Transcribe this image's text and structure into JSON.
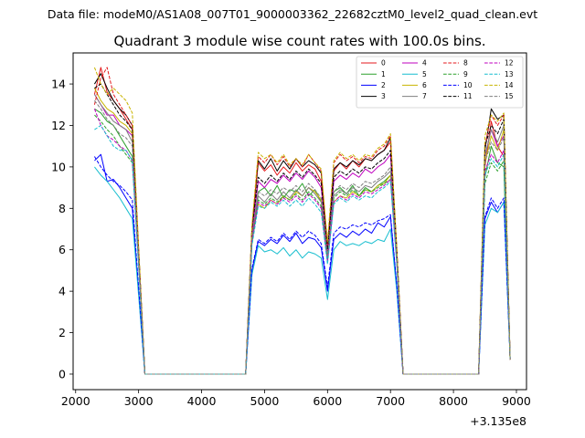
{
  "suptitle": "Data file: modeM0/AS1A08_007T01_9000003362_22682cztM0_level2_quad_clean.evt",
  "chart_data": {
    "type": "line",
    "title": "Quadrant 3 module wise count rates with 100.0s bins.",
    "xlabel": "",
    "ylabel": "",
    "x_offset_label": "+3.135e8",
    "xlim": [
      1960,
      9160
    ],
    "ylim": [
      -0.75,
      15.5
    ],
    "x_ticks": [
      2000,
      3000,
      4000,
      5000,
      6000,
      7000,
      8000,
      9000
    ],
    "y_ticks": [
      0,
      2,
      4,
      6,
      8,
      10,
      12,
      14
    ],
    "legend_position": "top-right",
    "x": [
      2300,
      2400,
      2500,
      2600,
      2700,
      2800,
      2900,
      3000,
      3100,
      3200,
      3300,
      3400,
      3500,
      3600,
      3700,
      3800,
      3900,
      4000,
      4100,
      4200,
      4300,
      4400,
      4500,
      4600,
      4700,
      4800,
      4900,
      5000,
      5100,
      5200,
      5300,
      5400,
      5500,
      5600,
      5700,
      5800,
      5900,
      6000,
      6100,
      6200,
      6300,
      6400,
      6500,
      6600,
      6700,
      6800,
      6900,
      7000,
      7100,
      7200,
      7300,
      7400,
      7500,
      7600,
      7700,
      7800,
      7900,
      8000,
      8100,
      8200,
      8300,
      8400,
      8500,
      8600,
      8700,
      8800,
      8900
    ],
    "series": [
      {
        "name": "0",
        "color": "#e41a1c",
        "dash": "solid",
        "values": [
          13.5,
          14.8,
          13.6,
          13.2,
          12.8,
          12.3,
          11.8,
          6.0,
          0.0,
          0.0,
          0.0,
          0.0,
          0.0,
          0.0,
          0.0,
          0.0,
          0.0,
          0.0,
          0.0,
          0.0,
          0.0,
          0.0,
          0.0,
          0.0,
          0.0,
          7.0,
          10.2,
          9.8,
          10.1,
          9.6,
          10.0,
          9.7,
          10.2,
          9.8,
          10.1,
          9.9,
          9.3,
          6.2,
          9.8,
          10.2,
          9.9,
          10.3,
          10.0,
          10.4,
          10.3,
          10.6,
          10.8,
          11.2,
          6.0,
          0.0,
          0.0,
          0.0,
          0.0,
          0.0,
          0.0,
          0.0,
          0.0,
          0.0,
          0.0,
          0.0,
          0.0,
          0.0,
          10.0,
          12.2,
          11.0,
          10.5,
          0.7
        ]
      },
      {
        "name": "1",
        "color": "#2ca02c",
        "dash": "solid",
        "values": [
          12.8,
          12.6,
          12.2,
          12.0,
          11.5,
          11.0,
          10.5,
          5.5,
          0.0,
          0.0,
          0.0,
          0.0,
          0.0,
          0.0,
          0.0,
          0.0,
          0.0,
          0.0,
          0.0,
          0.0,
          0.0,
          0.0,
          0.0,
          0.0,
          0.0,
          6.5,
          8.8,
          9.0,
          8.6,
          9.1,
          8.5,
          8.9,
          8.8,
          9.2,
          8.6,
          8.9,
          8.3,
          5.6,
          8.8,
          9.0,
          8.7,
          9.1,
          8.6,
          9.0,
          8.8,
          9.1,
          9.3,
          9.6,
          5.5,
          0.0,
          0.0,
          0.0,
          0.0,
          0.0,
          0.0,
          0.0,
          0.0,
          0.0,
          0.0,
          0.0,
          0.0,
          0.0,
          9.5,
          11.0,
          10.2,
          10.0,
          0.7
        ]
      },
      {
        "name": "2",
        "color": "#0000ff",
        "dash": "solid",
        "values": [
          10.3,
          10.6,
          9.3,
          9.4,
          9.0,
          8.5,
          8.0,
          4.0,
          0.0,
          0.0,
          0.0,
          0.0,
          0.0,
          0.0,
          0.0,
          0.0,
          0.0,
          0.0,
          0.0,
          0.0,
          0.0,
          0.0,
          0.0,
          0.0,
          0.0,
          5.0,
          6.4,
          6.2,
          6.5,
          6.3,
          6.7,
          6.4,
          6.8,
          6.3,
          6.6,
          6.5,
          6.1,
          4.0,
          6.5,
          6.8,
          6.6,
          6.9,
          6.7,
          7.0,
          6.8,
          7.3,
          7.1,
          7.6,
          4.2,
          0.0,
          0.0,
          0.0,
          0.0,
          0.0,
          0.0,
          0.0,
          0.0,
          0.0,
          0.0,
          0.0,
          0.0,
          0.0,
          7.5,
          8.3,
          7.8,
          8.3,
          0.8
        ]
      },
      {
        "name": "3",
        "color": "#000000",
        "dash": "solid",
        "values": [
          14.0,
          14.5,
          13.8,
          13.2,
          12.8,
          12.5,
          12.0,
          6.0,
          0.0,
          0.0,
          0.0,
          0.0,
          0.0,
          0.0,
          0.0,
          0.0,
          0.0,
          0.0,
          0.0,
          0.0,
          0.0,
          0.0,
          0.0,
          0.0,
          0.0,
          7.0,
          10.3,
          9.9,
          10.4,
          9.8,
          10.3,
          9.9,
          10.4,
          10.0,
          10.3,
          10.1,
          9.7,
          6.0,
          9.9,
          10.2,
          10.0,
          10.3,
          10.1,
          10.4,
          10.3,
          10.6,
          10.8,
          11.4,
          6.0,
          0.0,
          0.0,
          0.0,
          0.0,
          0.0,
          0.0,
          0.0,
          0.0,
          0.0,
          0.0,
          0.0,
          0.0,
          0.0,
          10.8,
          12.8,
          12.3,
          12.5,
          0.7
        ]
      },
      {
        "name": "4",
        "color": "#bf00bf",
        "dash": "solid",
        "values": [
          13.5,
          13.0,
          12.5,
          12.5,
          12.0,
          11.8,
          11.5,
          5.8,
          0.0,
          0.0,
          0.0,
          0.0,
          0.0,
          0.0,
          0.0,
          0.0,
          0.0,
          0.0,
          0.0,
          0.0,
          0.0,
          0.0,
          0.0,
          0.0,
          0.0,
          6.8,
          9.3,
          9.0,
          9.4,
          9.2,
          9.6,
          9.3,
          9.7,
          9.4,
          9.8,
          9.5,
          9.0,
          5.9,
          9.3,
          9.6,
          9.4,
          9.7,
          9.5,
          9.9,
          9.7,
          10.0,
          10.2,
          10.6,
          5.8,
          0.0,
          0.0,
          0.0,
          0.0,
          0.0,
          0.0,
          0.0,
          0.0,
          0.0,
          0.0,
          0.0,
          0.0,
          0.0,
          10.5,
          11.8,
          11.0,
          11.5,
          0.7
        ]
      },
      {
        "name": "5",
        "color": "#17becf",
        "dash": "solid",
        "values": [
          10.0,
          9.6,
          9.3,
          8.9,
          8.5,
          8.0,
          7.5,
          3.8,
          0.0,
          0.0,
          0.0,
          0.0,
          0.0,
          0.0,
          0.0,
          0.0,
          0.0,
          0.0,
          0.0,
          0.0,
          0.0,
          0.0,
          0.0,
          0.0,
          0.0,
          4.8,
          6.2,
          5.9,
          6.0,
          5.8,
          6.1,
          5.7,
          6.0,
          5.6,
          5.9,
          5.8,
          5.6,
          3.6,
          6.0,
          6.4,
          6.2,
          6.3,
          6.2,
          6.4,
          6.3,
          6.5,
          6.4,
          7.0,
          4.0,
          0.0,
          0.0,
          0.0,
          0.0,
          0.0,
          0.0,
          0.0,
          0.0,
          0.0,
          0.0,
          0.0,
          0.0,
          0.0,
          7.2,
          8.0,
          7.8,
          8.3,
          0.8
        ]
      },
      {
        "name": "6",
        "color": "#c8b400",
        "dash": "solid",
        "values": [
          13.8,
          13.2,
          12.8,
          12.6,
          12.2,
          12.0,
          11.6,
          5.8,
          0.0,
          0.0,
          0.0,
          0.0,
          0.0,
          0.0,
          0.0,
          0.0,
          0.0,
          0.0,
          0.0,
          0.0,
          0.0,
          0.0,
          0.0,
          0.0,
          0.0,
          6.5,
          8.2,
          8.0,
          8.4,
          8.2,
          8.6,
          8.4,
          8.8,
          8.6,
          9.0,
          8.8,
          8.4,
          5.5,
          8.3,
          8.6,
          8.5,
          8.8,
          8.6,
          8.9,
          8.8,
          9.1,
          9.2,
          9.6,
          5.5,
          0.0,
          0.0,
          0.0,
          0.0,
          0.0,
          0.0,
          0.0,
          0.0,
          0.0,
          0.0,
          0.0,
          0.0,
          0.0,
          10.2,
          11.5,
          10.8,
          11.8,
          0.7
        ]
      },
      {
        "name": "7",
        "color": "#7f7f7f",
        "dash": "solid",
        "values": [
          13.5,
          13.0,
          12.6,
          12.2,
          12.0,
          11.8,
          11.2,
          5.6,
          0.0,
          0.0,
          0.0,
          0.0,
          0.0,
          0.0,
          0.0,
          0.0,
          0.0,
          0.0,
          0.0,
          0.0,
          0.0,
          0.0,
          0.0,
          0.0,
          0.0,
          6.5,
          8.6,
          8.3,
          8.7,
          8.4,
          8.8,
          8.5,
          8.9,
          8.6,
          9.0,
          8.7,
          8.3,
          5.6,
          8.6,
          8.9,
          8.7,
          9.0,
          8.8,
          9.1,
          9.0,
          9.3,
          9.5,
          9.8,
          5.6,
          0.0,
          0.0,
          0.0,
          0.0,
          0.0,
          0.0,
          0.0,
          0.0,
          0.0,
          0.0,
          0.0,
          0.0,
          0.0,
          10.5,
          11.8,
          11.2,
          12.0,
          0.7
        ]
      },
      {
        "name": "8",
        "color": "#e41a1c",
        "dash": "dashed",
        "values": [
          13.0,
          14.3,
          14.8,
          13.5,
          13.0,
          12.5,
          12.0,
          6.0,
          0.0,
          0.0,
          0.0,
          0.0,
          0.0,
          0.0,
          0.0,
          0.0,
          0.0,
          0.0,
          0.0,
          0.0,
          0.0,
          0.0,
          0.0,
          0.0,
          0.0,
          7.0,
          10.5,
          10.2,
          10.6,
          10.1,
          10.5,
          10.0,
          10.4,
          10.0,
          10.6,
          10.2,
          9.8,
          6.2,
          10.2,
          10.6,
          10.3,
          10.5,
          10.2,
          10.5,
          10.4,
          10.8,
          11.0,
          11.5,
          6.0,
          0.0,
          0.0,
          0.0,
          0.0,
          0.0,
          0.0,
          0.0,
          0.0,
          0.0,
          0.0,
          0.0,
          0.0,
          0.0,
          11.0,
          12.5,
          12.0,
          12.5,
          0.7
        ]
      },
      {
        "name": "9",
        "color": "#2ca02c",
        "dash": "dashed",
        "values": [
          12.5,
          12.2,
          11.8,
          11.5,
          11.0,
          10.6,
          10.2,
          5.3,
          0.0,
          0.0,
          0.0,
          0.0,
          0.0,
          0.0,
          0.0,
          0.0,
          0.0,
          0.0,
          0.0,
          0.0,
          0.0,
          0.0,
          0.0,
          0.0,
          0.0,
          6.3,
          8.4,
          8.2,
          8.5,
          8.3,
          8.6,
          8.4,
          8.7,
          8.4,
          8.8,
          8.5,
          8.1,
          5.5,
          8.5,
          8.8,
          8.6,
          8.9,
          8.6,
          8.9,
          8.8,
          9.0,
          9.2,
          9.4,
          5.4,
          0.0,
          0.0,
          0.0,
          0.0,
          0.0,
          0.0,
          0.0,
          0.0,
          0.0,
          0.0,
          0.0,
          0.0,
          0.0,
          9.2,
          10.2,
          9.8,
          10.3,
          0.7
        ]
      },
      {
        "name": "10",
        "color": "#0000ff",
        "dash": "dashed",
        "values": [
          10.5,
          10.0,
          9.6,
          9.3,
          9.1,
          8.8,
          8.4,
          4.2,
          0.0,
          0.0,
          0.0,
          0.0,
          0.0,
          0.0,
          0.0,
          0.0,
          0.0,
          0.0,
          0.0,
          0.0,
          0.0,
          0.0,
          0.0,
          0.0,
          0.0,
          5.1,
          6.5,
          6.3,
          6.6,
          6.4,
          6.8,
          6.5,
          6.9,
          6.6,
          6.9,
          6.7,
          6.3,
          4.2,
          6.8,
          7.1,
          7.0,
          7.2,
          7.1,
          7.3,
          7.2,
          7.4,
          7.5,
          7.7,
          4.3,
          0.0,
          0.0,
          0.0,
          0.0,
          0.0,
          0.0,
          0.0,
          0.0,
          0.0,
          0.0,
          0.0,
          0.0,
          0.0,
          7.6,
          8.5,
          8.0,
          8.5,
          0.8
        ]
      },
      {
        "name": "11",
        "color": "#000000",
        "dash": "dashed",
        "values": [
          13.8,
          14.0,
          13.5,
          13.0,
          12.5,
          12.2,
          11.8,
          6.0,
          0.0,
          0.0,
          0.0,
          0.0,
          0.0,
          0.0,
          0.0,
          0.0,
          0.0,
          0.0,
          0.0,
          0.0,
          0.0,
          0.0,
          0.0,
          0.0,
          0.0,
          7.0,
          9.5,
          9.2,
          9.6,
          9.3,
          9.7,
          9.4,
          9.8,
          9.5,
          9.9,
          9.6,
          9.2,
          5.9,
          9.5,
          9.8,
          9.6,
          9.9,
          9.7,
          10.0,
          9.9,
          10.2,
          10.4,
          10.8,
          5.9,
          0.0,
          0.0,
          0.0,
          0.0,
          0.0,
          0.0,
          0.0,
          0.0,
          0.0,
          0.0,
          0.0,
          0.0,
          0.0,
          11.0,
          12.0,
          11.6,
          12.3,
          0.7
        ]
      },
      {
        "name": "12",
        "color": "#bf00bf",
        "dash": "dashed",
        "values": [
          12.8,
          12.0,
          11.5,
          11.3,
          11.0,
          10.8,
          10.3,
          5.4,
          0.0,
          0.0,
          0.0,
          0.0,
          0.0,
          0.0,
          0.0,
          0.0,
          0.0,
          0.0,
          0.0,
          0.0,
          0.0,
          0.0,
          0.0,
          0.0,
          0.0,
          6.4,
          8.3,
          8.1,
          8.4,
          8.2,
          8.5,
          8.3,
          8.6,
          8.3,
          8.7,
          8.4,
          8.0,
          5.4,
          8.3,
          8.6,
          8.4,
          8.7,
          8.5,
          8.8,
          8.7,
          8.9,
          9.1,
          9.4,
          5.4,
          0.0,
          0.0,
          0.0,
          0.0,
          0.0,
          0.0,
          0.0,
          0.0,
          0.0,
          0.0,
          0.0,
          0.0,
          0.0,
          9.8,
          10.6,
          10.2,
          10.8,
          0.7
        ]
      },
      {
        "name": "13",
        "color": "#17becf",
        "dash": "dashed",
        "values": [
          11.8,
          12.0,
          11.5,
          11.0,
          10.8,
          10.8,
          10.3,
          5.2,
          0.0,
          0.0,
          0.0,
          0.0,
          0.0,
          0.0,
          0.0,
          0.0,
          0.0,
          0.0,
          0.0,
          0.0,
          0.0,
          0.0,
          0.0,
          0.0,
          0.0,
          6.2,
          8.1,
          8.0,
          8.3,
          8.1,
          8.4,
          8.1,
          8.4,
          8.1,
          8.5,
          8.2,
          7.8,
          5.3,
          8.2,
          8.5,
          8.3,
          8.6,
          8.4,
          8.6,
          8.5,
          8.8,
          9.0,
          9.3,
          5.3,
          0.0,
          0.0,
          0.0,
          0.0,
          0.0,
          0.0,
          0.0,
          0.0,
          0.0,
          0.0,
          0.0,
          0.0,
          0.0,
          9.6,
          10.4,
          10.0,
          10.6,
          0.7
        ]
      },
      {
        "name": "14",
        "color": "#c8b400",
        "dash": "dashed",
        "values": [
          14.8,
          14.0,
          13.5,
          13.8,
          13.5,
          13.2,
          12.6,
          6.2,
          0.0,
          0.0,
          0.0,
          0.0,
          0.0,
          0.0,
          0.0,
          0.0,
          0.0,
          0.0,
          0.0,
          0.0,
          0.0,
          0.0,
          0.0,
          0.0,
          0.0,
          7.2,
          10.7,
          10.4,
          10.6,
          10.2,
          10.6,
          10.1,
          10.4,
          10.1,
          10.6,
          10.2,
          9.9,
          6.4,
          10.3,
          10.7,
          10.4,
          10.6,
          10.3,
          10.6,
          10.5,
          10.9,
          11.1,
          11.6,
          6.1,
          0.0,
          0.0,
          0.0,
          0.0,
          0.0,
          0.0,
          0.0,
          0.0,
          0.0,
          0.0,
          0.0,
          0.0,
          0.0,
          11.5,
          12.5,
          12.2,
          12.6,
          0.7
        ]
      },
      {
        "name": "15",
        "color": "#7f7f7f",
        "dash": "dashed",
        "values": [
          13.2,
          12.8,
          12.3,
          12.0,
          11.6,
          11.4,
          11.0,
          5.6,
          0.0,
          0.0,
          0.0,
          0.0,
          0.0,
          0.0,
          0.0,
          0.0,
          0.0,
          0.0,
          0.0,
          0.0,
          0.0,
          0.0,
          0.0,
          0.0,
          0.0,
          6.6,
          8.8,
          8.6,
          8.9,
          8.7,
          9.0,
          8.8,
          9.1,
          8.8,
          9.2,
          8.9,
          8.5,
          5.7,
          8.8,
          9.1,
          8.9,
          9.2,
          9.0,
          9.3,
          9.2,
          9.4,
          9.6,
          10.0,
          5.6,
          0.0,
          0.0,
          0.0,
          0.0,
          0.0,
          0.0,
          0.0,
          0.0,
          0.0,
          0.0,
          0.0,
          0.0,
          0.0,
          10.2,
          11.2,
          10.8,
          11.4,
          0.7
        ]
      }
    ]
  }
}
